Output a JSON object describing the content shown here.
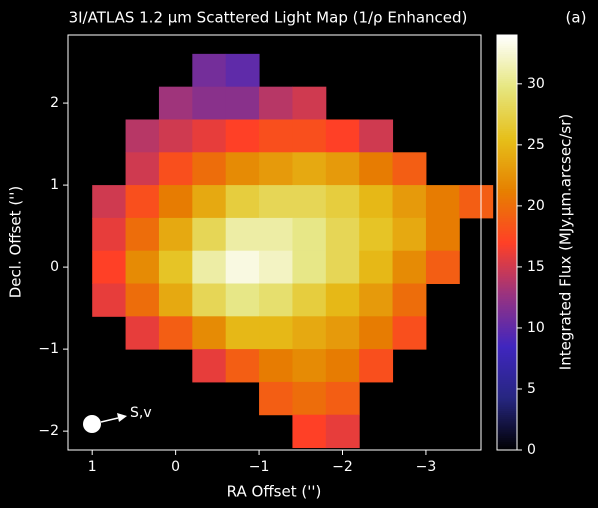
{
  "chart_data": {
    "type": "heatmap",
    "title": "3I/ATLAS 1.2 μm Scattered Light Map (1/ρ Enhanced)",
    "panel_label": "(a)",
    "x_label": "RA Offset ('')",
    "y_label": "Decl. Offset ('')",
    "colorbar_label": "Integrated Flux (MJy.μm.arcsec/sr)",
    "annotation": "S,v",
    "x": [
      0.8,
      0.4,
      0.0,
      -0.4,
      -0.8,
      -1.2,
      -1.6,
      -2.0,
      -2.4,
      -2.8,
      -3.2,
      -3.6
    ],
    "y": [
      2.4,
      2.0,
      1.6,
      1.2,
      0.8,
      0.4,
      0.0,
      -0.4,
      -0.8,
      -1.2,
      -1.6,
      -2.0
    ],
    "z": [
      [
        null,
        null,
        null,
        11,
        10,
        null,
        null,
        null,
        null,
        null,
        null,
        null
      ],
      [
        null,
        null,
        13,
        12,
        12,
        14,
        15,
        null,
        null,
        null,
        null,
        null
      ],
      [
        null,
        14,
        15,
        16,
        17,
        18,
        18,
        17,
        15,
        null,
        null,
        null
      ],
      [
        null,
        15,
        18,
        20,
        22,
        23,
        24,
        23,
        21,
        19,
        null,
        null
      ],
      [
        15,
        18,
        21,
        24,
        27,
        28,
        28,
        27,
        25,
        23,
        21,
        19
      ],
      [
        16,
        20,
        24,
        28,
        31,
        31,
        30,
        28,
        26,
        24,
        21,
        null
      ],
      [
        17,
        22,
        26,
        31,
        33,
        32,
        30,
        28,
        25,
        22,
        19,
        null
      ],
      [
        16,
        20,
        24,
        28,
        30,
        29,
        27,
        25,
        23,
        20,
        null,
        null
      ],
      [
        null,
        16,
        19,
        22,
        25,
        25,
        24,
        23,
        21,
        18,
        null,
        null
      ],
      [
        null,
        null,
        null,
        16,
        19,
        21,
        22,
        21,
        18,
        null,
        null,
        null
      ],
      [
        null,
        null,
        null,
        null,
        null,
        19,
        20,
        19,
        null,
        null,
        null,
        null
      ],
      [
        null,
        null,
        null,
        null,
        null,
        null,
        17,
        16,
        null,
        null,
        null,
        null
      ]
    ],
    "xlim": [
      1.29,
      -3.66
    ],
    "ylim": [
      -2.23,
      2.83
    ],
    "xticks": [
      1,
      0,
      {
        "value": -1,
        "label": "−1"
      },
      {
        "value": -2,
        "label": "−2"
      },
      {
        "value": -3,
        "label": "−3"
      }
    ],
    "yticks": [
      {
        "value": -2,
        "label": "−2"
      },
      {
        "value": -1,
        "label": "−1"
      },
      0,
      1,
      2
    ],
    "clim": [
      0,
      34
    ],
    "cticks": [
      0,
      5,
      10,
      15,
      20,
      25,
      30
    ],
    "colormap": [
      "#000000",
      "#262680",
      "#4026bf",
      "#993380",
      "#ff4026",
      "#e68000",
      "#e6bf1a",
      "#e6e680",
      "#ffffff"
    ]
  }
}
